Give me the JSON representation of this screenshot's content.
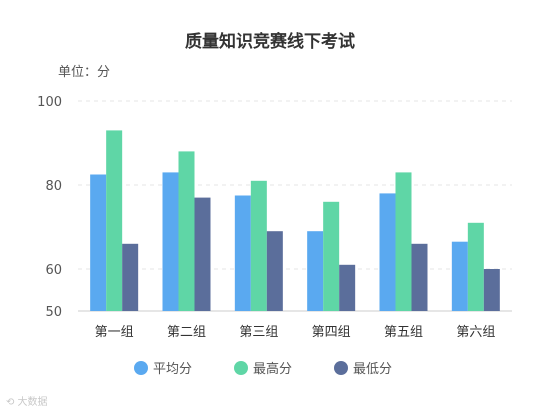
{
  "chart_data": {
    "type": "bar",
    "title": "质量知识竞赛线下考试",
    "unit_label": "单位：分",
    "categories": [
      "第一组",
      "第二组",
      "第三组",
      "第四组",
      "第五组",
      "第六组"
    ],
    "series": [
      {
        "name": "平均分",
        "color": "#5aa9f0",
        "values": [
          82.5,
          83,
          77.5,
          69,
          78,
          66.5
        ]
      },
      {
        "name": "最高分",
        "color": "#5fd6a6",
        "values": [
          93,
          88,
          81,
          76,
          83,
          71
        ]
      },
      {
        "name": "最低分",
        "color": "#5b6e9b",
        "values": [
          66,
          77,
          69,
          61,
          66,
          60
        ]
      }
    ],
    "ylim": [
      50,
      100
    ],
    "yticks": [
      50,
      60,
      80,
      100
    ],
    "grid": true,
    "legend_position": "bottom"
  },
  "watermark": "⟲ 大数据"
}
